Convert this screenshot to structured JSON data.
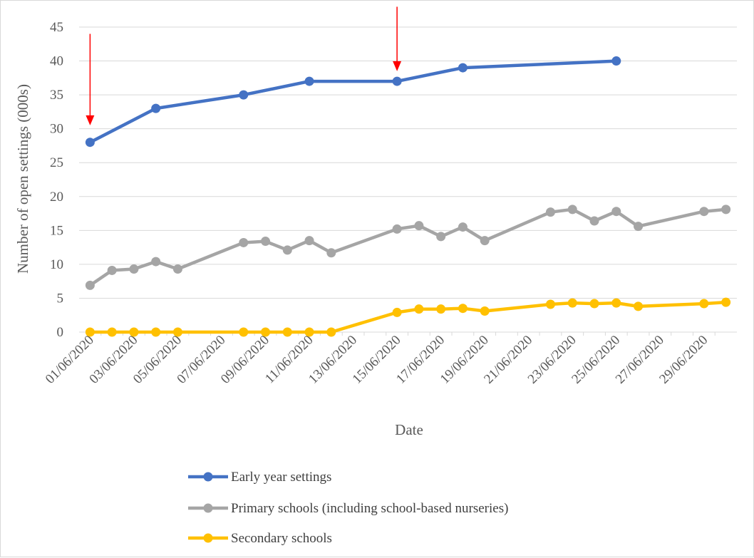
{
  "chart_data": {
    "type": "line",
    "title": "",
    "xlabel": "Date",
    "ylabel": "Number of open settings (000s)",
    "ylim": [
      0,
      45
    ],
    "ytick_step": 5,
    "x_ticks": [
      "01/06/2020",
      "03/06/2020",
      "05/06/2020",
      "07/06/2020",
      "09/06/2020",
      "11/06/2020",
      "13/06/2020",
      "15/06/2020",
      "17/06/2020",
      "19/06/2020",
      "21/06/2020",
      "23/06/2020",
      "25/06/2020",
      "27/06/2020",
      "29/06/2020"
    ],
    "x_start": "2020-06-01",
    "x_end": "2020-07-01",
    "grid": true,
    "legend_position": "bottom",
    "series": [
      {
        "name": "Early year settings",
        "color": "#4472C4",
        "points": [
          {
            "x": "2020-06-01",
            "y": 28
          },
          {
            "x": "2020-06-04",
            "y": 33
          },
          {
            "x": "2020-06-08",
            "y": 35
          },
          {
            "x": "2020-06-11",
            "y": 37
          },
          {
            "x": "2020-06-15",
            "y": 37
          },
          {
            "x": "2020-06-18",
            "y": 39
          },
          {
            "x": "2020-06-25",
            "y": 40
          }
        ]
      },
      {
        "name": "Primary schools (including school-based nurseries)",
        "color": "#A5A5A5",
        "points": [
          {
            "x": "2020-06-01",
            "y": 6.9
          },
          {
            "x": "2020-06-02",
            "y": 9.1
          },
          {
            "x": "2020-06-03",
            "y": 9.3
          },
          {
            "x": "2020-06-04",
            "y": 10.4
          },
          {
            "x": "2020-06-05",
            "y": 9.3
          },
          {
            "x": "2020-06-08",
            "y": 13.2
          },
          {
            "x": "2020-06-09",
            "y": 13.4
          },
          {
            "x": "2020-06-10",
            "y": 12.1
          },
          {
            "x": "2020-06-11",
            "y": 13.5
          },
          {
            "x": "2020-06-12",
            "y": 11.7
          },
          {
            "x": "2020-06-15",
            "y": 15.2
          },
          {
            "x": "2020-06-16",
            "y": 15.7
          },
          {
            "x": "2020-06-17",
            "y": 14.1
          },
          {
            "x": "2020-06-18",
            "y": 15.5
          },
          {
            "x": "2020-06-19",
            "y": 13.5
          },
          {
            "x": "2020-06-22",
            "y": 17.7
          },
          {
            "x": "2020-06-23",
            "y": 18.1
          },
          {
            "x": "2020-06-24",
            "y": 16.4
          },
          {
            "x": "2020-06-25",
            "y": 17.8
          },
          {
            "x": "2020-06-26",
            "y": 15.6
          },
          {
            "x": "2020-06-29",
            "y": 17.8
          },
          {
            "x": "2020-06-30",
            "y": 18.1
          }
        ]
      },
      {
        "name": "Secondary schools",
        "color": "#FFC000",
        "points": [
          {
            "x": "2020-06-01",
            "y": 0
          },
          {
            "x": "2020-06-02",
            "y": 0
          },
          {
            "x": "2020-06-03",
            "y": 0
          },
          {
            "x": "2020-06-04",
            "y": 0
          },
          {
            "x": "2020-06-05",
            "y": 0
          },
          {
            "x": "2020-06-08",
            "y": 0
          },
          {
            "x": "2020-06-09",
            "y": 0
          },
          {
            "x": "2020-06-10",
            "y": 0
          },
          {
            "x": "2020-06-11",
            "y": 0
          },
          {
            "x": "2020-06-12",
            "y": 0
          },
          {
            "x": "2020-06-15",
            "y": 2.9
          },
          {
            "x": "2020-06-16",
            "y": 3.4
          },
          {
            "x": "2020-06-17",
            "y": 3.4
          },
          {
            "x": "2020-06-18",
            "y": 3.5
          },
          {
            "x": "2020-06-19",
            "y": 3.1
          },
          {
            "x": "2020-06-22",
            "y": 4.1
          },
          {
            "x": "2020-06-23",
            "y": 4.3
          },
          {
            "x": "2020-06-24",
            "y": 4.2
          },
          {
            "x": "2020-06-25",
            "y": 4.3
          },
          {
            "x": "2020-06-26",
            "y": 3.8
          },
          {
            "x": "2020-06-29",
            "y": 4.2
          },
          {
            "x": "2020-06-30",
            "y": 4.4
          }
        ]
      }
    ],
    "annotations": [
      {
        "type": "arrow",
        "color": "#FF0000",
        "x": "2020-06-01",
        "y_from": 44,
        "y_to": 30.5
      },
      {
        "type": "arrow",
        "color": "#FF0000",
        "x": "2020-06-15",
        "y_from": 48,
        "y_to": 38.5
      }
    ]
  }
}
